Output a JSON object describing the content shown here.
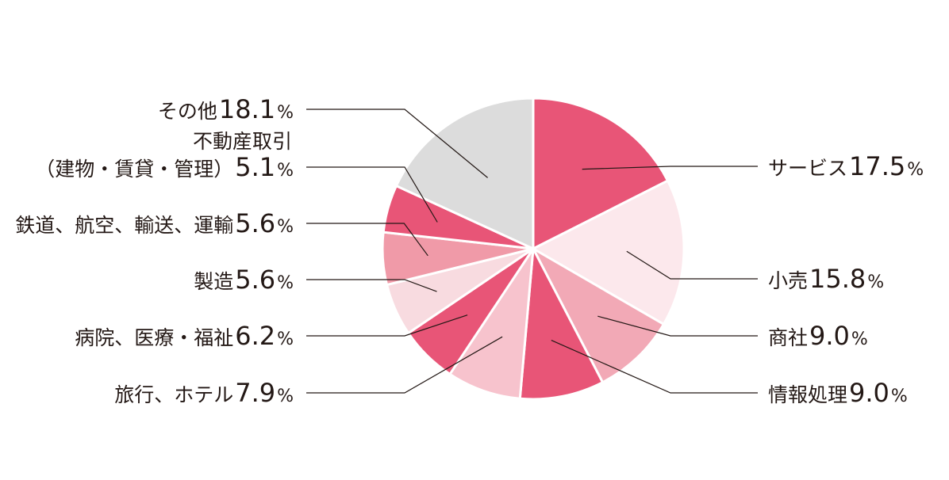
{
  "chart_data": {
    "type": "pie",
    "title": "",
    "unit": "%",
    "slices": [
      {
        "name": "サービス",
        "value": 17.5,
        "color": "#e85577"
      },
      {
        "name": "小売",
        "value": 15.8,
        "color": "#fce8ec"
      },
      {
        "name": "商社",
        "value": 9.0,
        "color": "#f2a9b6"
      },
      {
        "name": "情報処理",
        "value": 9.0,
        "color": "#e85577"
      },
      {
        "name": "旅行、ホテル",
        "value": 7.9,
        "color": "#f7c3cd"
      },
      {
        "name": "病院、医療・福祉",
        "value": 6.2,
        "color": "#e85577"
      },
      {
        "name": "製造",
        "value": 5.6,
        "color": "#f8dbe0"
      },
      {
        "name": "鉄道、航空、輸送、運輸",
        "value": 5.6,
        "color": "#f09aa8"
      },
      {
        "name": "不動産取引",
        "name_line2": "（建物・賃貸・管理）",
        "value": 5.1,
        "color": "#e85577"
      },
      {
        "name": "その他",
        "value": 18.1,
        "color": "#dcdcdc"
      }
    ]
  }
}
